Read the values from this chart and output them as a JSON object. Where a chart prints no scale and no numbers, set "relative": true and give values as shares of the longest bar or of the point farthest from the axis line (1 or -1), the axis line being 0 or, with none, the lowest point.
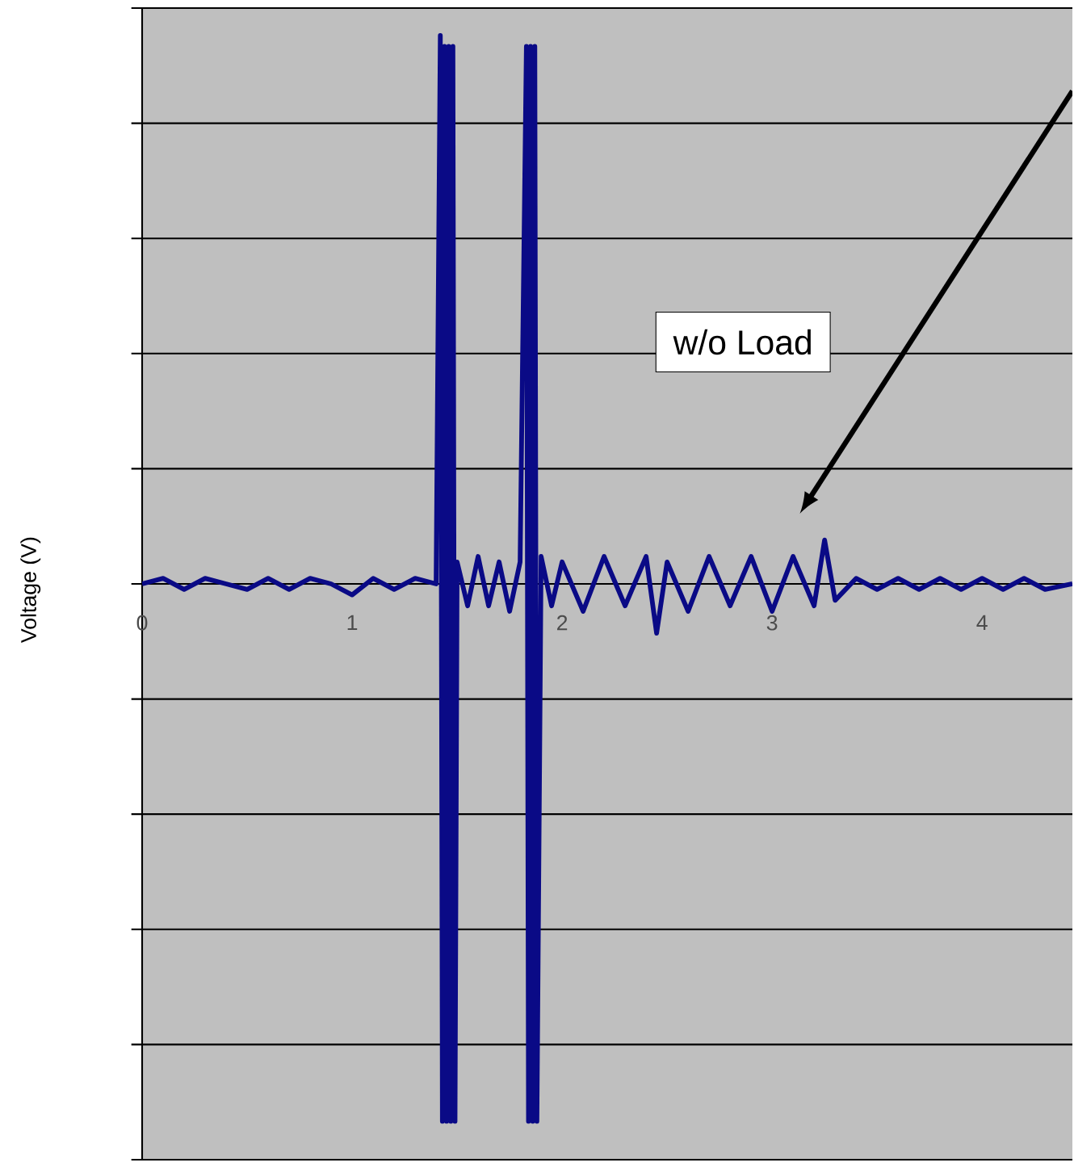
{
  "chart_data": {
    "type": "line",
    "ylabel": "Voltage (V)",
    "relative": true,
    "grid": "y",
    "color": "#0a0a86",
    "x": [
      0,
      0.1,
      0.2,
      0.3,
      0.4,
      0.5,
      0.6,
      0.7,
      0.8,
      0.9,
      1.0,
      1.1,
      1.2,
      1.3,
      1.4,
      1.42,
      1.43,
      1.44,
      1.45,
      1.46,
      1.47,
      1.48,
      1.49,
      1.5,
      1.55,
      1.6,
      1.65,
      1.7,
      1.75,
      1.8,
      1.83,
      1.84,
      1.85,
      1.86,
      1.87,
      1.88,
      1.9,
      1.95,
      2.0,
      2.1,
      2.2,
      2.3,
      2.4,
      2.45,
      2.5,
      2.6,
      2.7,
      2.8,
      2.9,
      3.0,
      3.1,
      3.2,
      3.25,
      3.3,
      3.4,
      3.5,
      3.6,
      3.7,
      3.8,
      3.9,
      4.0,
      4.1,
      4.2,
      4.3,
      4.43
    ],
    "values": [
      0,
      0.01,
      -0.01,
      0.01,
      0,
      -0.01,
      0.01,
      -0.01,
      0.01,
      0,
      -0.02,
      0.01,
      -0.01,
      0.01,
      0,
      1,
      -0.98,
      0.98,
      -0.98,
      0.98,
      -0.98,
      0.98,
      -0.98,
      0.04,
      -0.04,
      0.05,
      -0.04,
      0.04,
      -0.05,
      0.04,
      0.98,
      -0.98,
      0.98,
      -0.98,
      0.98,
      -0.98,
      0.05,
      -0.04,
      0.04,
      -0.05,
      0.05,
      -0.04,
      0.05,
      -0.09,
      0.04,
      -0.05,
      0.05,
      -0.04,
      0.05,
      -0.05,
      0.05,
      -0.04,
      0.08,
      -0.03,
      0.01,
      -0.01,
      0.01,
      -0.01,
      0.01,
      -0.01,
      0.01,
      -0.01,
      0.01,
      -0.01,
      0
    ],
    "xlim": [
      0,
      4.43
    ],
    "xticks": [
      0,
      1,
      2,
      3,
      4
    ],
    "annotations": [
      "w/o Load"
    ]
  }
}
